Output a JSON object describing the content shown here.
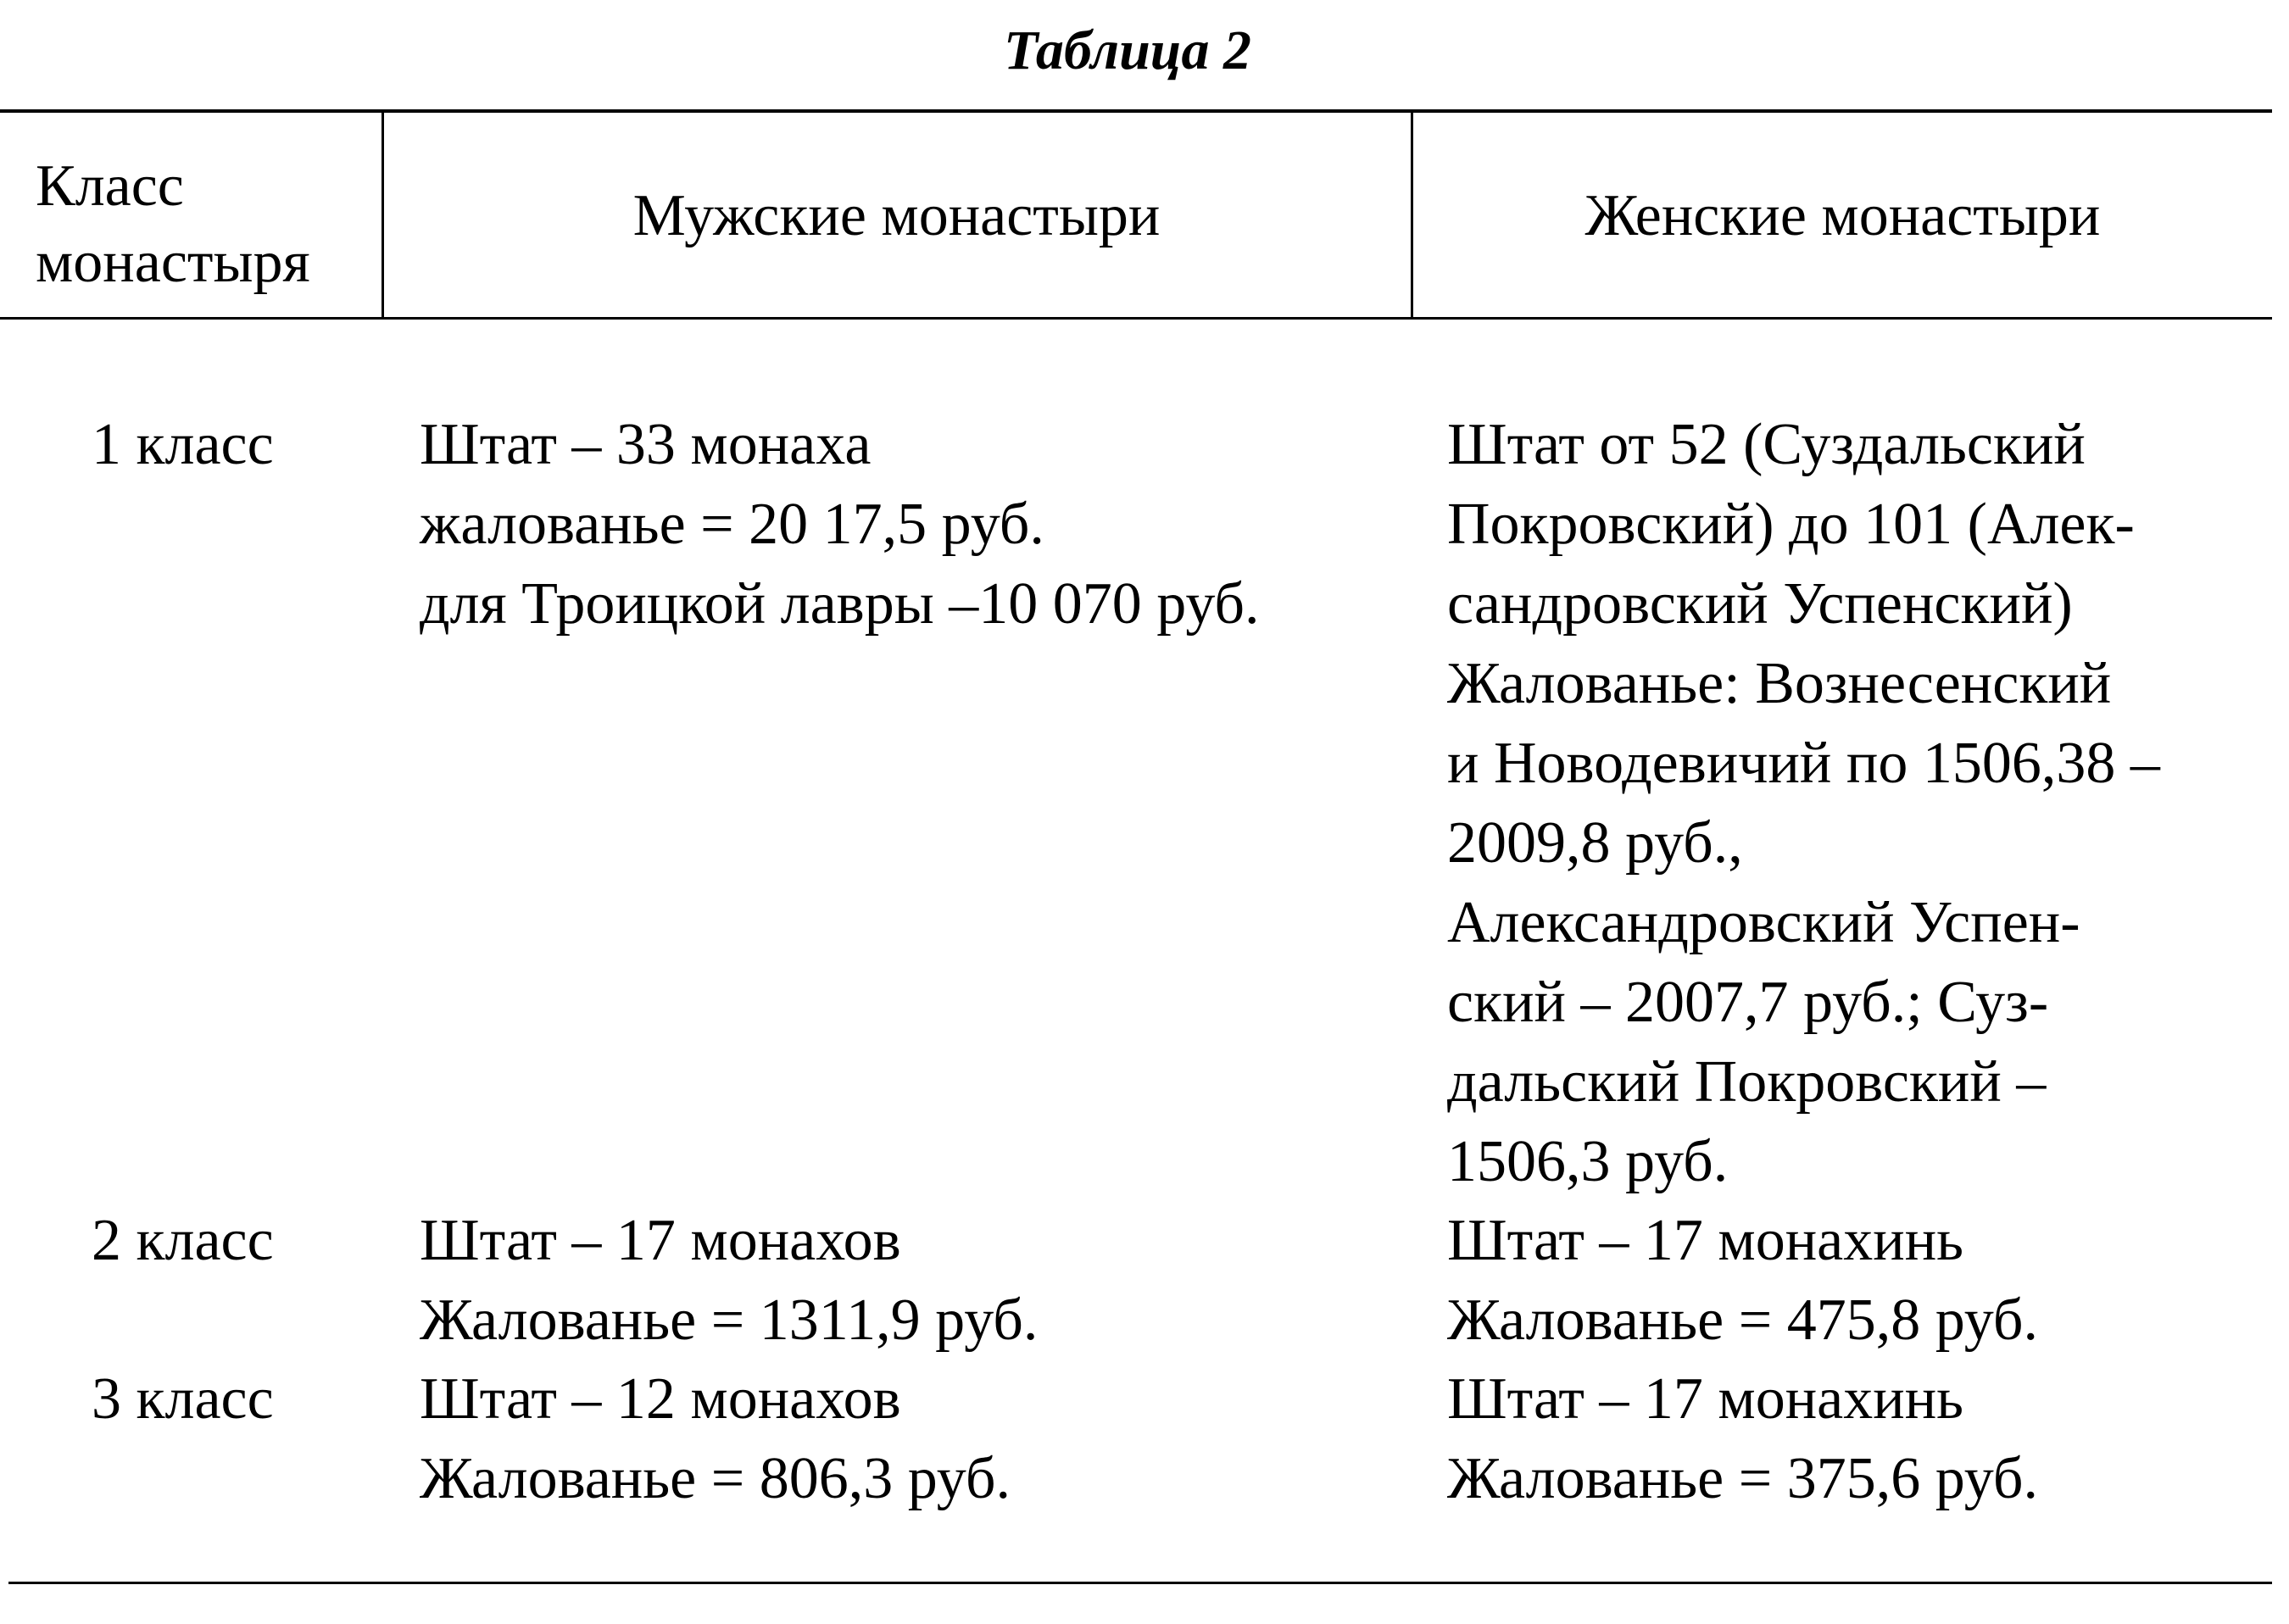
{
  "title": "Таблица 2",
  "headers": [
    "Класс монастыря",
    "Мужские монастыри",
    "Женские монастыри"
  ],
  "header_lines": {
    "class": [
      "Класс",
      "монастыря"
    ]
  },
  "rows": [
    {
      "class": "1 класс",
      "male": [
        "Штат – 33 монаха",
        "жалованье = 20 17,5 руб.",
        "для Троицкой лавры –10 070 руб."
      ],
      "female": [
        "Штат от 52 (Суздальский",
        "Покровский) до 101 (Алек-",
        "сандровский Успенский)",
        "Жалованье: Вознесенский",
        "и Новодевичий по 1506,38 –",
        "2009,8 руб.,",
        "Александровский Успен-",
        "ский – 2007,7 руб.; Суз-",
        "дальский Покровский –",
        "1506,3 руб."
      ]
    },
    {
      "class": "2 класс",
      "male": [
        "Штат – 17 монахов",
        "Жалованье = 1311,9 руб."
      ],
      "female": [
        "Штат – 17 монахинь",
        "Жалованье = 475,8 руб."
      ]
    },
    {
      "class": "3 класс",
      "male": [
        "Штат – 12 монахов",
        "Жалованье = 806,3 руб."
      ],
      "female": [
        "Штат – 17 монахинь",
        "Жалованье = 375,6 руб."
      ]
    }
  ]
}
